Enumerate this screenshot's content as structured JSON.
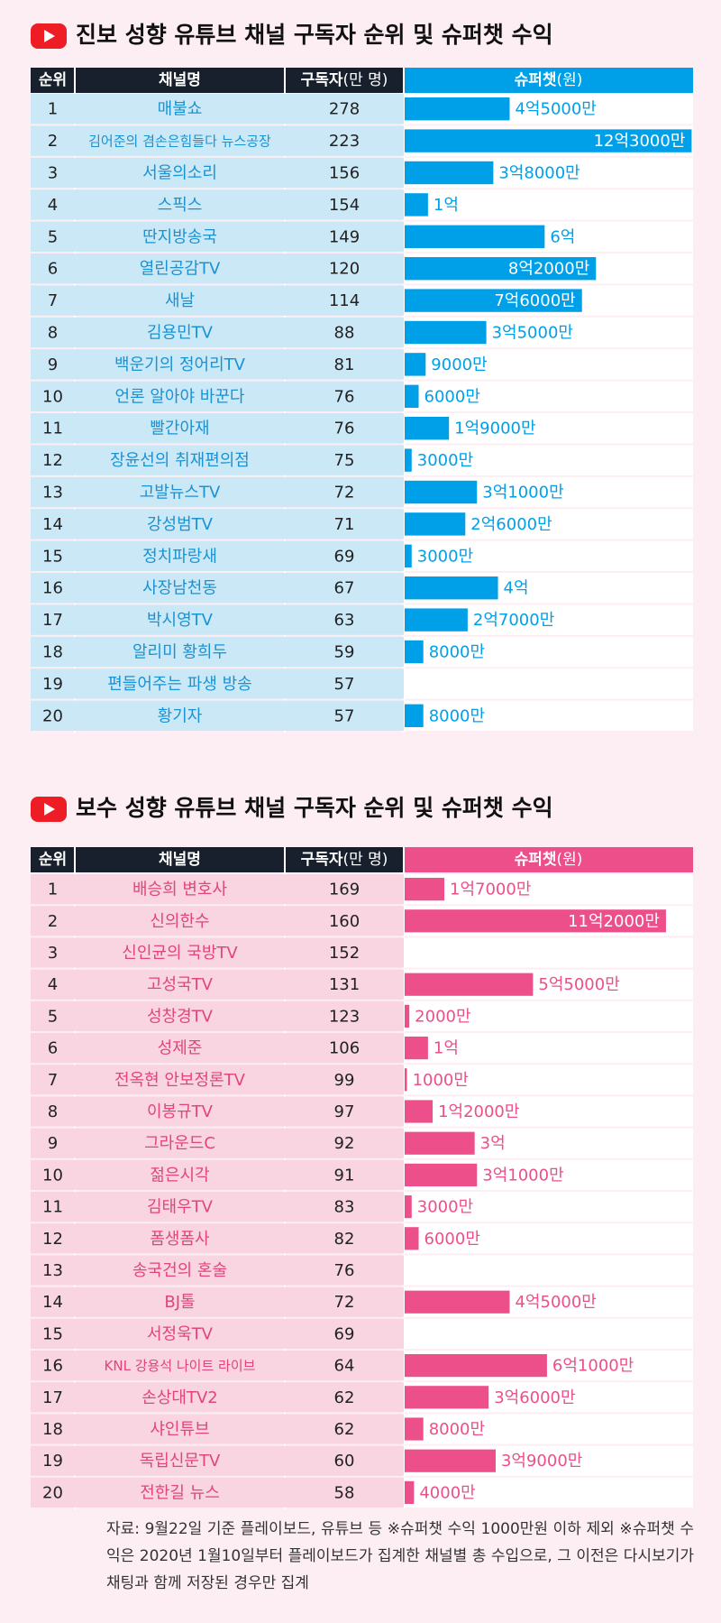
{
  "chart_data": [
    {
      "type": "bar",
      "orientation": "horizontal",
      "color": "#00a0e9",
      "title": "진보 성향 유튜브 채널 구독자 순위 및 슈퍼챗 수익",
      "rank_header": "순위",
      "name_header": "채널명",
      "subscriber_header": "구독자",
      "subscriber_unit": "(만 명)",
      "value_header": "슈퍼챗",
      "value_unit": "(원)",
      "ranks": [
        1,
        2,
        3,
        4,
        5,
        6,
        7,
        8,
        9,
        10,
        11,
        12,
        13,
        14,
        15,
        16,
        17,
        18,
        19,
        20
      ],
      "categories": [
        "매불쇼",
        "김어준의 겸손은힘들다 뉴스공장",
        "서울의소리",
        "스픽스",
        "딴지방송국",
        "열린공감TV",
        "새날",
        "김용민TV",
        "백운기의 정어리TV",
        "언론 알아야 바꾼다",
        "빨간아재",
        "장윤선의 취재편의점",
        "고발뉴스TV",
        "강성범TV",
        "정치파랑새",
        "사장남천동",
        "박시영TV",
        "알리미 황희두",
        "편들어주는 파생 방송",
        "황기자"
      ],
      "subscribers": [
        278,
        223,
        156,
        154,
        149,
        120,
        114,
        88,
        81,
        76,
        76,
        75,
        72,
        71,
        69,
        67,
        63,
        59,
        57,
        57
      ],
      "values": [
        450000000,
        1230000000,
        380000000,
        100000000,
        600000000,
        820000000,
        760000000,
        350000000,
        90000000,
        60000000,
        190000000,
        30000000,
        310000000,
        260000000,
        30000000,
        400000000,
        270000000,
        80000000,
        null,
        80000000
      ],
      "value_labels": [
        "4억5000만",
        "12억3000만",
        "3억8000만",
        "1억",
        "6억",
        "8억2000만",
        "7억6000만",
        "3억5000만",
        "9000만",
        "6000만",
        "1억9000만",
        "3000만",
        "3억1000만",
        "2억6000만",
        "3000만",
        "4억",
        "2억7000만",
        "8000만",
        null,
        "8000만"
      ],
      "xlim": [
        0,
        1240000000
      ]
    },
    {
      "type": "bar",
      "orientation": "horizontal",
      "color": "#ec4f8a",
      "title": "보수 성향 유튜브 채널 구독자 순위 및 슈퍼챗 수익",
      "rank_header": "순위",
      "name_header": "채널명",
      "subscriber_header": "구독자",
      "subscriber_unit": "(만 명)",
      "value_header": "슈퍼챗",
      "value_unit": "(원)",
      "ranks": [
        1,
        2,
        3,
        4,
        5,
        6,
        7,
        8,
        9,
        10,
        11,
        12,
        13,
        14,
        15,
        16,
        17,
        18,
        19,
        20
      ],
      "categories": [
        "배승희 변호사",
        "신의한수",
        "신인균의 국방TV",
        "고성국TV",
        "성창경TV",
        "성제준",
        "전옥현 안보정론TV",
        "이봉규TV",
        "그라운드C",
        "젊은시각",
        "김태우TV",
        "폼생폼사",
        "송국건의 혼술",
        "BJ톨",
        "서정욱TV",
        "KNL 강용석 나이트 라이브",
        "손상대TV2",
        "샤인튜브",
        "독립신문TV",
        "전한길 뉴스"
      ],
      "subscribers": [
        169,
        160,
        152,
        131,
        123,
        106,
        99,
        97,
        92,
        91,
        83,
        82,
        76,
        72,
        69,
        64,
        62,
        62,
        60,
        58
      ],
      "values": [
        170000000,
        1120000000,
        null,
        550000000,
        20000000,
        100000000,
        10000000,
        120000000,
        300000000,
        310000000,
        30000000,
        60000000,
        null,
        450000000,
        null,
        610000000,
        360000000,
        80000000,
        390000000,
        40000000
      ],
      "value_labels": [
        "1억7000만",
        "11억2000만",
        null,
        "5억5000만",
        "2000만",
        "1억",
        "1000만",
        "1억2000만",
        "3억",
        "3억1000만",
        "3000만",
        "6000만",
        null,
        "4억5000만",
        null,
        "6억1000만",
        "3억6000만",
        "8000만",
        "3억9000만",
        "4000만"
      ],
      "xlim": [
        0,
        1240000000
      ]
    }
  ],
  "source_note": "자료: 9월22일 기준 플레이보드, 유튜브 등 ※슈퍼챗 수익 1000만원 이하 제외 ※슈퍼챗 수익은 2020년 1월10일부터 플레이보드가 집계한 채널별 총 수입으로, 그 이전은 다시보기가 채팅과 함께 저장된 경우만 집계"
}
